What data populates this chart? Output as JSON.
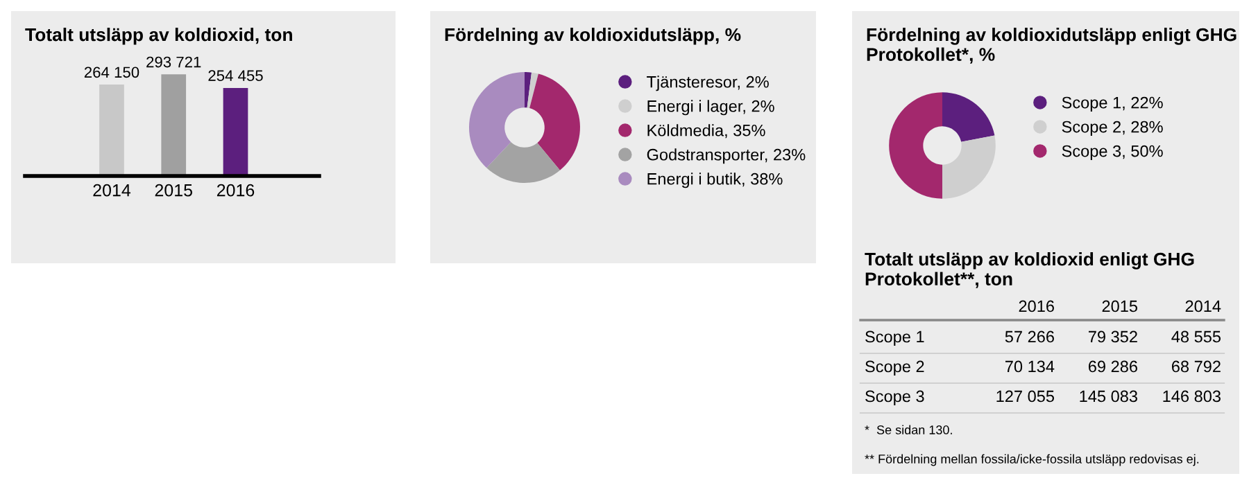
{
  "chart_data": [
    {
      "type": "bar",
      "title": "Totalt utsläpp av koldioxid, ton",
      "categories": [
        "2014",
        "2015",
        "2016"
      ],
      "values": [
        264150,
        293721,
        254455
      ],
      "colors": [
        "#c8c8c8",
        "#a0a0a0",
        "#5c1f7e"
      ],
      "value_labels": [
        "264 150",
        "293 721",
        "254 455"
      ],
      "grid": false,
      "legend": false
    },
    {
      "type": "donut",
      "title": "Fördelning av koldioxidutsläpp, %",
      "categories": [
        "Tjänsteresor, 2%",
        "Energi i lager, 2%",
        "Köldmedia, 35%",
        "Godstransporter, 23%",
        "Energi i butik, 38%"
      ],
      "values": [
        2,
        2,
        35,
        23,
        38
      ],
      "colors": [
        "#5c1f7e",
        "#cfcfcf",
        "#a3286d",
        "#a3a3a3",
        "#a98bbf"
      ],
      "legend": "right"
    },
    {
      "type": "donut",
      "title": "Fördelning av koldioxidutsläpp enligt GHG Protokollet*, %",
      "categories": [
        "Scope 1, 22%",
        "Scope 2, 28%",
        "Scope 3, 50%"
      ],
      "values": [
        22,
        28,
        50
      ],
      "colors": [
        "#5c1f7e",
        "#cfcfcf",
        "#a3286d"
      ],
      "legend": "right"
    },
    {
      "type": "other",
      "title": "Totalt utsläpp av koldioxid enligt GHG Protokollet**, ton",
      "categories": [
        "2016",
        "2015",
        "2014"
      ],
      "y_categories": [
        "Scope 1",
        "Scope 2",
        "Scope 3"
      ],
      "cell_labels": [
        [
          "57 266",
          "79 352",
          "48 555"
        ],
        [
          "70 134",
          "69 286",
          "68 792"
        ],
        [
          "127 055",
          "145 083",
          "146 803"
        ]
      ],
      "annotations": [
        "*  Se sidan 130.",
        "** Fördelning mellan fossila/icke-fossila utsläpp redovisas ej."
      ]
    }
  ]
}
